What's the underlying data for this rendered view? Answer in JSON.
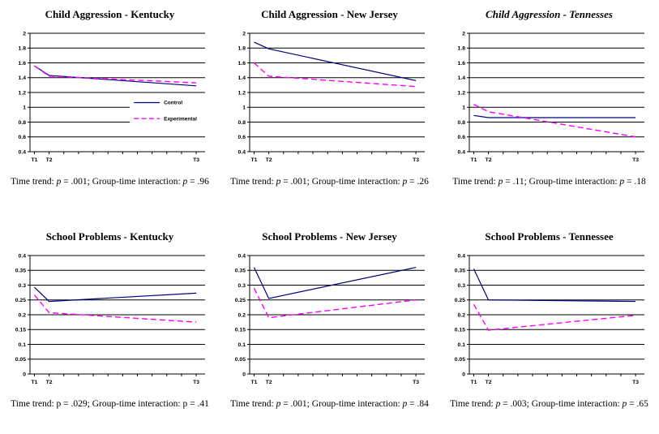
{
  "page": {
    "background": "#ffffff"
  },
  "colors": {
    "control": "#000080",
    "experimental": "#ff00ff",
    "axis": "#000000",
    "plot_background": "#ffffff"
  },
  "chart_data": [
    {
      "type": "line",
      "title": "Child Aggression - Kentucky",
      "title_italic": false,
      "caption": "Time trend: p = .001; Group-time interaction: p = .96",
      "x": [
        1,
        2,
        12
      ],
      "x_axis_ticks": [
        1,
        2,
        3,
        4,
        5,
        6,
        7,
        8,
        9,
        10,
        11,
        12
      ],
      "x_tick_labels": {
        "1": "T1",
        "2": "T2",
        "12": "T3"
      },
      "xlim": [
        0.7,
        12.6
      ],
      "ylim": [
        0.4,
        2
      ],
      "yticks": [
        2,
        1.8,
        1.6,
        1.4,
        1.2,
        1,
        0.8,
        0.6,
        0.4
      ],
      "grid": true,
      "legend": {
        "visible": true,
        "position": "middle-right"
      },
      "series": [
        {
          "name": "Control",
          "color": "#000080",
          "style": "solid",
          "values": [
            1.56,
            1.43,
            1.29
          ]
        },
        {
          "name": "Experimental",
          "color": "#ff00ff",
          "style": "dashed",
          "values": [
            1.56,
            1.42,
            1.33
          ]
        }
      ]
    },
    {
      "type": "line",
      "title": "Child Aggression - New Jersey",
      "title_italic": false,
      "caption": "Time trend: p = .001; Group-time interaction: p = .26",
      "x": [
        1,
        2,
        12
      ],
      "x_axis_ticks": [
        1,
        2,
        3,
        4,
        5,
        6,
        7,
        8,
        9,
        10,
        11,
        12
      ],
      "x_tick_labels": {
        "1": "T1",
        "2": "T2",
        "12": "T3"
      },
      "xlim": [
        0.7,
        12.6
      ],
      "ylim": [
        0.4,
        2
      ],
      "yticks": [
        2,
        1.8,
        1.6,
        1.4,
        1.2,
        1,
        0.8,
        0.6,
        0.4
      ],
      "grid": true,
      "legend": {
        "visible": false
      },
      "series": [
        {
          "name": "Control",
          "color": "#000080",
          "style": "solid",
          "values": [
            1.88,
            1.79,
            1.36
          ]
        },
        {
          "name": "Experimental",
          "color": "#ff00ff",
          "style": "dashed",
          "values": [
            1.6,
            1.42,
            1.28
          ]
        }
      ]
    },
    {
      "type": "line",
      "title": "Child Aggression - Tennesses",
      "title_italic": true,
      "caption": "Time trend: p = .11; Group-time interaction: p = .18",
      "x": [
        1,
        2,
        12
      ],
      "x_axis_ticks": [
        1,
        2,
        3,
        4,
        5,
        6,
        7,
        8,
        9,
        10,
        11,
        12
      ],
      "x_tick_labels": {
        "1": "T1",
        "2": "T2",
        "12": "T3"
      },
      "xlim": [
        0.7,
        12.6
      ],
      "ylim": [
        0.4,
        2
      ],
      "yticks": [
        2,
        1.8,
        1.6,
        1.4,
        1.2,
        1,
        0.8,
        0.6,
        0.4
      ],
      "grid": true,
      "legend": {
        "visible": false
      },
      "series": [
        {
          "name": "Control",
          "color": "#000080",
          "style": "solid",
          "values": [
            0.89,
            0.86,
            0.86
          ]
        },
        {
          "name": "Experimental",
          "color": "#ff00ff",
          "style": "dashed",
          "values": [
            1.04,
            0.94,
            0.6
          ]
        }
      ]
    },
    {
      "type": "line",
      "title": "School Problems - Kentucky",
      "title_italic": false,
      "caption": "Time trend: p = .029; Group-time interaction: p = .41",
      "x": [
        1,
        2,
        12
      ],
      "x_axis_ticks": [
        1,
        2,
        3,
        4,
        5,
        6,
        7,
        8,
        9,
        10,
        11,
        12
      ],
      "x_tick_labels": {
        "1": "T1",
        "2": "T2",
        "12": "T3"
      },
      "xlim": [
        0.7,
        12.6
      ],
      "ylim": [
        0,
        0.4
      ],
      "yticks": [
        0.4,
        0.35,
        0.3,
        0.25,
        0.2,
        0.15,
        0.1,
        0.05,
        0
      ],
      "grid": true,
      "legend": {
        "visible": false
      },
      "series": [
        {
          "name": "Control",
          "color": "#000080",
          "style": "solid",
          "values": [
            0.293,
            0.245,
            0.273
          ]
        },
        {
          "name": "Experimental",
          "color": "#ff00ff",
          "style": "dashed",
          "values": [
            0.267,
            0.207,
            0.175
          ]
        }
      ]
    },
    {
      "type": "line",
      "title": "School Problems - New Jersey",
      "title_italic": false,
      "caption": "Time trend: p = .001; Group-time interaction: p = .84",
      "x": [
        1,
        2,
        12
      ],
      "x_axis_ticks": [
        1,
        2,
        3,
        4,
        5,
        6,
        7,
        8,
        9,
        10,
        11,
        12
      ],
      "x_tick_labels": {
        "1": "T1",
        "2": "T2",
        "12": "T3"
      },
      "xlim": [
        0.7,
        12.6
      ],
      "ylim": [
        0,
        0.4
      ],
      "yticks": [
        0.4,
        0.35,
        0.3,
        0.25,
        0.2,
        0.15,
        0.1,
        0.05,
        0
      ],
      "grid": true,
      "legend": {
        "visible": false
      },
      "series": [
        {
          "name": "Control",
          "color": "#000080",
          "style": "solid",
          "values": [
            0.36,
            0.255,
            0.36
          ]
        },
        {
          "name": "Experimental",
          "color": "#ff00ff",
          "style": "dashed",
          "values": [
            0.29,
            0.19,
            0.25
          ]
        }
      ]
    },
    {
      "type": "line",
      "title": "School Problems - Tennessee",
      "title_italic": false,
      "caption": "Time trend: p = .003; Group-time interaction: p = .65",
      "x": [
        1,
        2,
        12
      ],
      "x_axis_ticks": [
        1,
        2,
        3,
        4,
        5,
        6,
        7,
        8,
        9,
        10,
        11,
        12
      ],
      "x_tick_labels": {
        "1": "T1",
        "2": "T2",
        "12": "T3"
      },
      "xlim": [
        0.7,
        12.6
      ],
      "ylim": [
        0,
        0.4
      ],
      "yticks": [
        0.4,
        0.35,
        0.3,
        0.25,
        0.2,
        0.15,
        0.1,
        0.05,
        0
      ],
      "grid": true,
      "legend": {
        "visible": false
      },
      "series": [
        {
          "name": "Control",
          "color": "#000080",
          "style": "solid",
          "values": [
            0.355,
            0.25,
            0.245
          ]
        },
        {
          "name": "Experimental",
          "color": "#ff00ff",
          "style": "dashed",
          "values": [
            0.235,
            0.148,
            0.198
          ]
        }
      ]
    }
  ]
}
